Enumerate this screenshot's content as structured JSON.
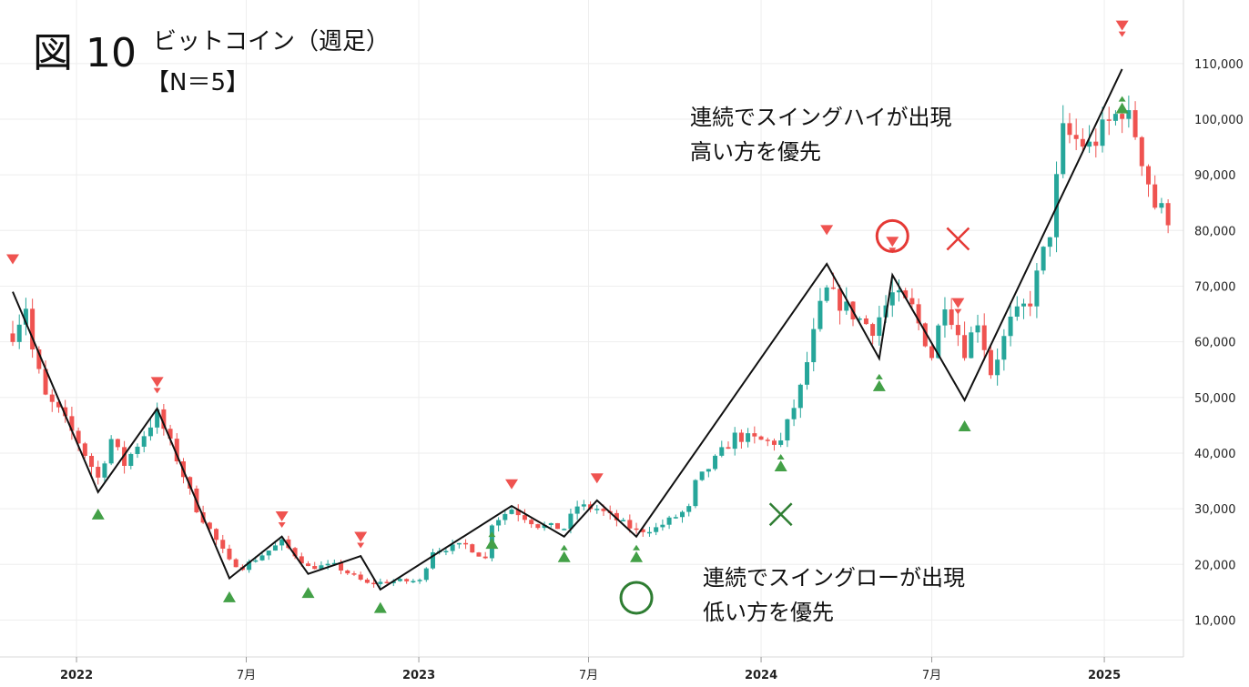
{
  "figure": {
    "label": "図 10",
    "title": "ビットコイン（週足）",
    "subtitle": "【N＝5】"
  },
  "annotations": {
    "high_note_line1": "連続でスイングハイが出現",
    "high_note_line2": "高い方を優先",
    "low_note_line1": "連続でスイングローが出現",
    "low_note_line2": "低い方を優先",
    "ok_mark": "○",
    "ng_mark": "×"
  },
  "colors": {
    "up": "#26a69a",
    "down": "#ef5350",
    "zigzag": "#111111",
    "grid": "#eeeeee",
    "high_marker": "#ef5350",
    "low_marker": "#43a047",
    "circle_high": "#e53935",
    "circle_low": "#2e7d32"
  },
  "chart_data": {
    "type": "candlestick",
    "y_axis": {
      "min": 5000,
      "max": 117000,
      "ticks": [
        10000,
        20000,
        30000,
        40000,
        50000,
        60000,
        70000,
        80000,
        90000,
        100000,
        110000
      ],
      "tick_labels": [
        "10,000",
        "20,000",
        "30,000",
        "40,000",
        "50,000",
        "60,000",
        "70,000",
        "80,000",
        "90,000",
        "100,000",
        "110,000"
      ]
    },
    "x_axis": {
      "start": "2021-10-25",
      "end": "2025-04-21",
      "ticks": [
        {
          "date": "2022-01-01",
          "label": "2022",
          "bold": true
        },
        {
          "date": "2022-07-01",
          "label": "7月",
          "bold": false
        },
        {
          "date": "2023-01-01",
          "label": "2023",
          "bold": true
        },
        {
          "date": "2023-07-01",
          "label": "7月",
          "bold": false
        },
        {
          "date": "2024-01-01",
          "label": "2024",
          "bold": true
        },
        {
          "date": "2024-07-01",
          "label": "7月",
          "bold": false
        },
        {
          "date": "2025-01-01",
          "label": "2025",
          "bold": true
        }
      ]
    },
    "candle_anchors": [
      [
        "2021-10-25",
        61500
      ],
      [
        "2021-11-08",
        66500
      ],
      [
        "2021-11-15",
        58500
      ],
      [
        "2021-11-29",
        50000
      ],
      [
        "2021-12-13",
        47500
      ],
      [
        "2022-01-03",
        42000
      ],
      [
        "2022-01-24",
        35500
      ],
      [
        "2022-02-07",
        42500
      ],
      [
        "2022-02-21",
        38000
      ],
      [
        "2022-03-28",
        47000
      ],
      [
        "2022-04-18",
        39000
      ],
      [
        "2022-05-09",
        30000
      ],
      [
        "2022-06-13",
        20500
      ],
      [
        "2022-06-27",
        19500
      ],
      [
        "2022-08-08",
        24000
      ],
      [
        "2022-09-05",
        19500
      ],
      [
        "2022-10-03",
        19800
      ],
      [
        "2022-11-07",
        16500
      ],
      [
        "2022-12-05",
        17000
      ],
      [
        "2023-01-02",
        17000
      ],
      [
        "2023-01-16",
        22500
      ],
      [
        "2023-02-20",
        23500
      ],
      [
        "2023-03-13",
        21000
      ],
      [
        "2023-03-20",
        27500
      ],
      [
        "2023-04-10",
        30000
      ],
      [
        "2023-05-08",
        27000
      ],
      [
        "2023-06-05",
        26500
      ],
      [
        "2023-06-19",
        30500
      ],
      [
        "2023-07-10",
        30000
      ],
      [
        "2023-08-21",
        26000
      ],
      [
        "2023-09-11",
        26500
      ],
      [
        "2023-10-16",
        30000
      ],
      [
        "2023-10-23",
        34500
      ],
      [
        "2023-12-04",
        43000
      ],
      [
        "2024-01-08",
        42000
      ],
      [
        "2024-01-22",
        42000
      ],
      [
        "2024-02-12",
        51500
      ],
      [
        "2024-03-04",
        66000
      ],
      [
        "2024-03-11",
        69000
      ],
      [
        "2024-04-15",
        64000
      ],
      [
        "2024-04-29",
        62500
      ],
      [
        "2024-05-20",
        68500
      ],
      [
        "2024-06-10",
        66000
      ],
      [
        "2024-07-01",
        57500
      ],
      [
        "2024-07-15",
        67500
      ],
      [
        "2024-08-05",
        58500
      ],
      [
        "2024-08-19",
        64000
      ],
      [
        "2024-09-02",
        54500
      ],
      [
        "2024-09-23",
        63500
      ],
      [
        "2024-10-14",
        67500
      ],
      [
        "2024-11-04",
        80000
      ],
      [
        "2024-11-18",
        97500
      ],
      [
        "2024-12-16",
        95000
      ],
      [
        "2025-01-20",
        102000
      ],
      [
        "2025-02-03",
        97500
      ],
      [
        "2025-02-24",
        84500
      ],
      [
        "2025-03-10",
        82500
      ]
    ],
    "zigzag": [
      [
        "2021-10-25",
        69000
      ],
      [
        "2022-01-24",
        33000
      ],
      [
        "2022-03-28",
        48000
      ],
      [
        "2022-06-13",
        17500
      ],
      [
        "2022-08-08",
        25000
      ],
      [
        "2022-09-05",
        18300
      ],
      [
        "2022-10-31",
        21500
      ],
      [
        "2022-11-21",
        15500
      ],
      [
        "2023-04-10",
        30500
      ],
      [
        "2023-06-05",
        25000
      ],
      [
        "2023-07-10",
        31500
      ],
      [
        "2023-08-21",
        25000
      ],
      [
        "2024-03-11",
        74000
      ],
      [
        "2024-05-06",
        57000
      ],
      [
        "2024-05-20",
        72000
      ],
      [
        "2024-08-05",
        49500
      ],
      [
        "2025-01-20",
        109000
      ]
    ],
    "swing_highs": [
      "2021-10-25",
      "2022-03-28",
      "2022-08-08",
      "2022-10-31",
      "2023-04-10",
      "2023-07-10",
      "2024-03-11",
      "2024-05-20",
      "2024-07-29",
      "2025-01-20"
    ],
    "swing_lows": [
      "2022-01-24",
      "2022-06-13",
      "2022-09-05",
      "2022-11-21",
      "2023-03-20",
      "2023-06-05",
      "2023-08-21",
      "2024-01-22",
      "2024-05-06",
      "2024-08-05",
      "2025-01-20"
    ],
    "stacked_markers": [
      "2022-03-28",
      "2022-08-08",
      "2022-10-31",
      "2023-03-20",
      "2023-06-05",
      "2023-08-21",
      "2024-01-22",
      "2024-05-06",
      "2024-05-20",
      "2024-07-29",
      "2025-01-20"
    ],
    "circle_high_at": [
      "2024-05-20",
      79000
    ],
    "cross_high_at": [
      "2024-07-29",
      78500
    ],
    "circle_low_at": [
      "2023-08-21",
      14000
    ],
    "cross_low_at": [
      "2024-01-22",
      29000
    ]
  }
}
